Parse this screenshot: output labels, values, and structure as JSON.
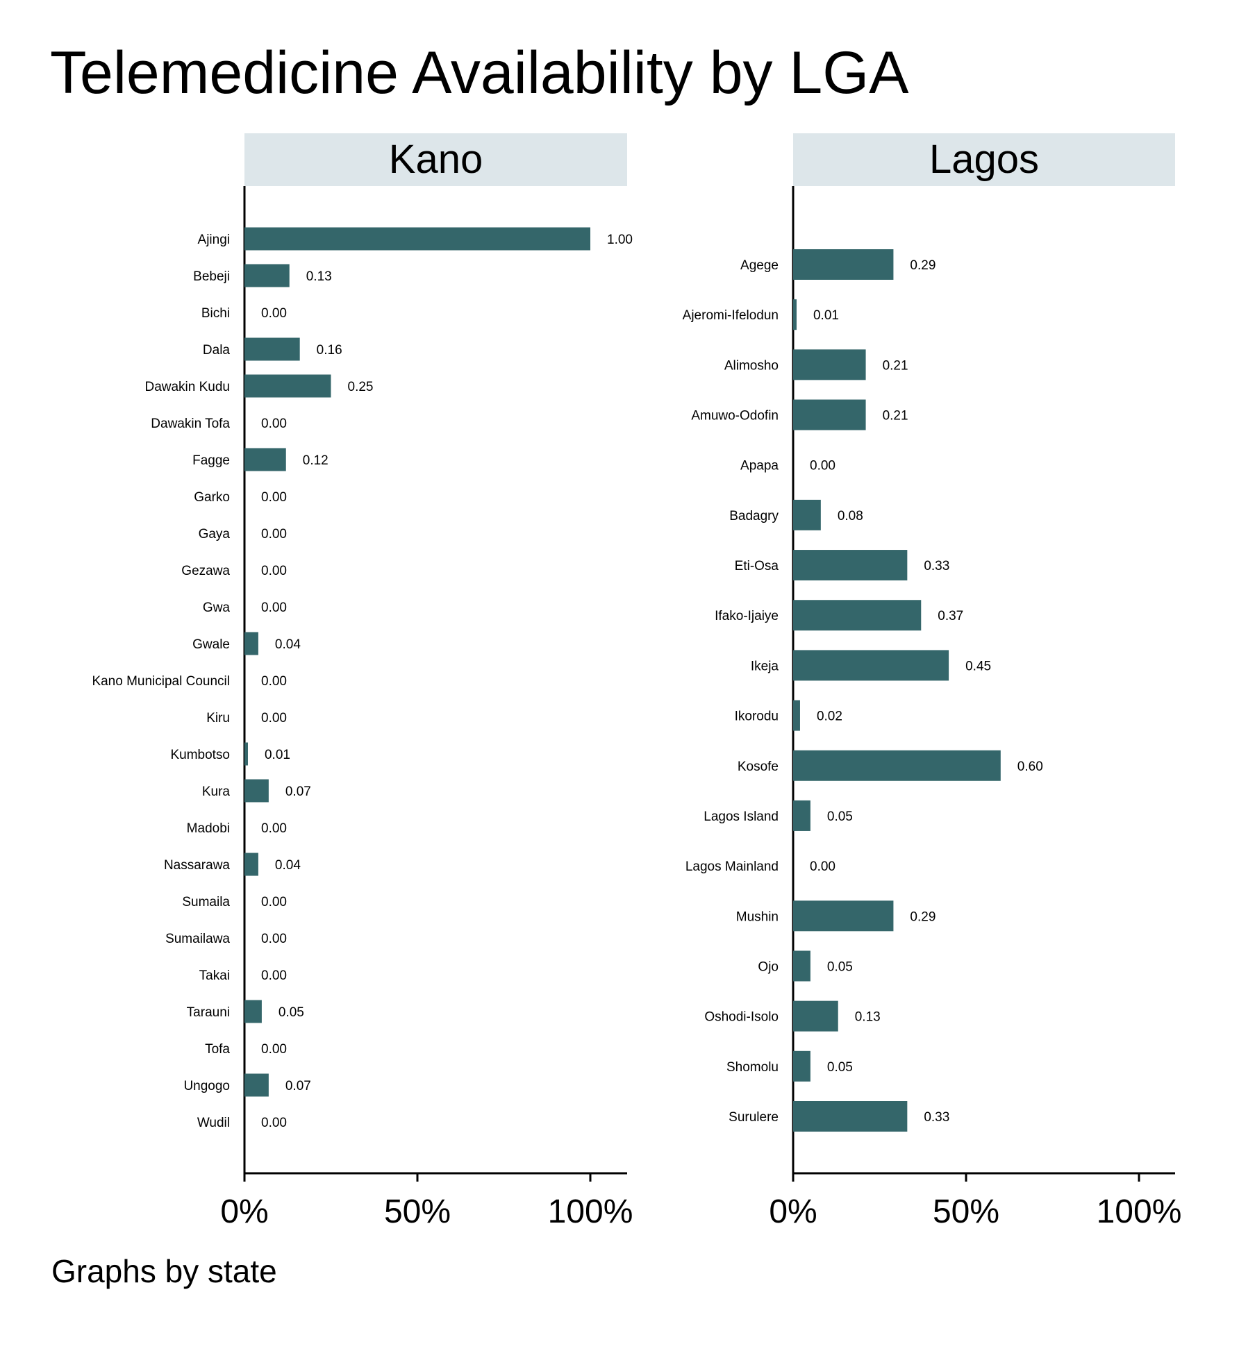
{
  "title": "Telemedicine Availability by LGA",
  "note": "Graphs by state",
  "colors": {
    "bar": "#34666a",
    "strip": "#dde6ea",
    "axis": "#000000"
  },
  "chart_data": [
    {
      "type": "bar",
      "orientation": "horizontal",
      "panel": "Kano",
      "categories": [
        "Ajingi",
        "Bebeji",
        "Bichi",
        "Dala",
        "Dawakin Kudu",
        "Dawakin Tofa",
        "Fagge",
        "Garko",
        "Gaya",
        "Gezawa",
        "Gwa",
        "Gwale",
        "Kano Municipal Council",
        "Kiru",
        "Kumbotso",
        "Kura",
        "Madobi",
        "Nassarawa",
        "Sumaila",
        "Sumailawa",
        "Takai",
        "Tarauni",
        "Tofa",
        "Ungogo",
        "Wudil"
      ],
      "values": [
        1.0,
        0.13,
        0.0,
        0.16,
        0.25,
        0.0,
        0.12,
        0.0,
        0.0,
        0.0,
        0.0,
        0.04,
        0.0,
        0.0,
        0.01,
        0.07,
        0.0,
        0.04,
        0.0,
        0.0,
        0.0,
        0.05,
        0.0,
        0.07,
        0.0
      ],
      "value_labels": [
        "1.00",
        "0.13",
        "0.00",
        "0.16",
        "0.25",
        "0.00",
        "0.12",
        "0.00",
        "0.00",
        "0.00",
        "0.00",
        "0.04",
        "0.00",
        "0.00",
        "0.01",
        "0.07",
        "0.00",
        "0.04",
        "0.00",
        "0.00",
        "0.00",
        "0.05",
        "0.00",
        "0.07",
        "0.00"
      ],
      "xlim": [
        0,
        1.1
      ],
      "xticks": [
        0,
        0.5,
        1.0
      ],
      "xtick_labels": [
        "0%",
        "50%",
        "100%"
      ]
    },
    {
      "type": "bar",
      "orientation": "horizontal",
      "panel": "Lagos",
      "categories": [
        "Agege",
        "Ajeromi-Ifelodun",
        "Alimosho",
        "Amuwo-Odofin",
        "Apapa",
        "Badagry",
        "Eti-Osa",
        "Ifako-Ijaiye",
        "Ikeja",
        "Ikorodu",
        "Kosofe",
        "Lagos Island",
        "Lagos Mainland",
        "Mushin",
        "Ojo",
        "Oshodi-Isolo",
        "Shomolu",
        "Surulere"
      ],
      "values": [
        0.29,
        0.01,
        0.21,
        0.21,
        0.0,
        0.08,
        0.33,
        0.37,
        0.45,
        0.02,
        0.6,
        0.05,
        0.0,
        0.29,
        0.05,
        0.13,
        0.05,
        0.33
      ],
      "value_labels": [
        "0.29",
        "0.01",
        "0.21",
        "0.21",
        "0.00",
        "0.08",
        "0.33",
        "0.37",
        "0.45",
        "0.02",
        "0.60",
        "0.05",
        "0.00",
        "0.29",
        "0.05",
        "0.13",
        "0.05",
        "0.33"
      ],
      "xlim": [
        0,
        1.1
      ],
      "xticks": [
        0,
        0.5,
        1.0
      ],
      "xtick_labels": [
        "0%",
        "50%",
        "100%"
      ]
    }
  ]
}
